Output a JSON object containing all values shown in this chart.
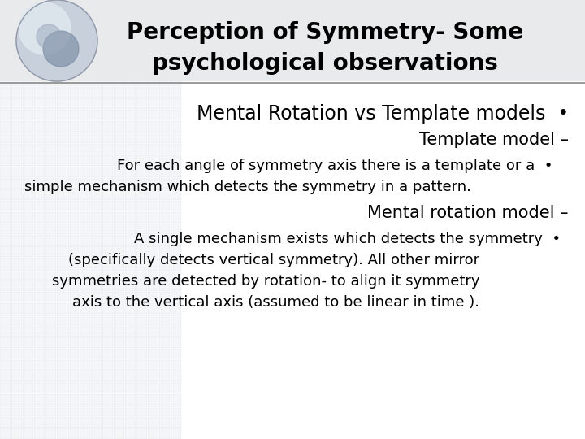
{
  "title_line1": "Perception of Symmetry- Some",
  "title_line2": "psychological observations",
  "bg_color": "#ffffff",
  "title_color": "#000000",
  "body_color": "#000000",
  "line_color": "#888888",
  "header_bg": "#e8eaec",
  "line1": "Mental Rotation vs Template models  •",
  "line2": "Template model –",
  "line3": "For each angle of symmetry axis there is a template or a  •",
  "line4": "simple mechanism which detects the symmetry in a pattern.",
  "line5": "Mental rotation model –",
  "line6": "A single mechanism exists which detects the symmetry  •",
  "line7": "(specifically detects vertical symmetry). All other mirror",
  "line8": "symmetries are detected by rotation- to align it symmetry",
  "line9": "axis to the vertical axis (assumed to be linear in time ).",
  "title_fontsize": 20,
  "heading_fontsize": 17,
  "body_fontsize": 13,
  "subheading_fontsize": 15,
  "grid_color": "#cdd5de",
  "grid_alpha": 0.35
}
